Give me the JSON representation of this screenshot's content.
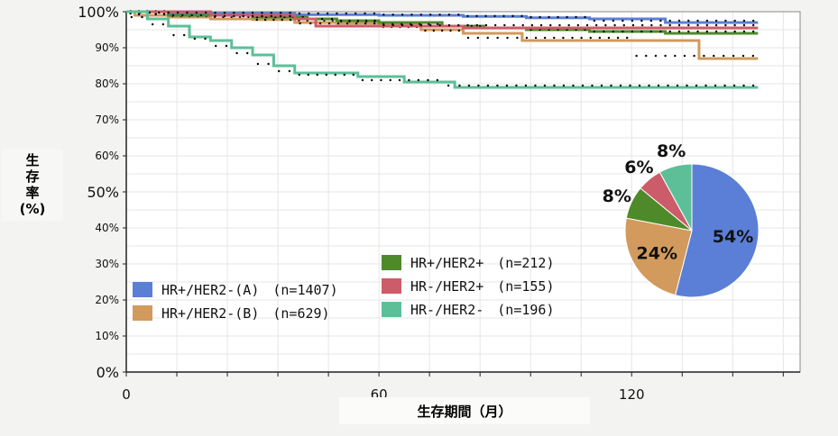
{
  "chart_data": [
    {
      "type": "line",
      "title": "",
      "ylabel_lines": [
        "生",
        "存",
        "率",
        "(%)"
      ],
      "xlabel": "生存期間（月）",
      "xlim": [
        0,
        160
      ],
      "ylim": [
        0,
        100
      ],
      "x_ticks": [
        "0",
        "60",
        "120"
      ],
      "x_tick_values": [
        0,
        60,
        120
      ],
      "y_ticks": [
        "0%",
        "10%",
        "20%",
        "30%",
        "40%",
        "50%",
        "60%",
        "70%",
        "80%",
        "90%",
        "100%"
      ],
      "y_tick_values": [
        0,
        10,
        20,
        30,
        40,
        50,
        60,
        70,
        80,
        90,
        100
      ],
      "grid": true,
      "legend_position": "bottom-left",
      "series": [
        {
          "name": "HR+/HER2-(A) (n=1407)",
          "color": "#5b7fd6",
          "x": [
            0,
            10,
            20,
            40,
            60,
            80,
            95,
            110,
            128,
            150
          ],
          "y": [
            100,
            99.7,
            99.5,
            99.2,
            99,
            98.7,
            98.3,
            98,
            97,
            97
          ]
        },
        {
          "name": "HR+/HER2-(B) (n=629)",
          "color": "#d29a5c",
          "x": [
            0,
            2,
            10,
            20,
            30,
            40,
            50,
            60,
            70,
            80,
            94,
            120,
            136,
            150
          ],
          "y": [
            100,
            99,
            98.5,
            98,
            97.8,
            97,
            96.8,
            96.5,
            95,
            94,
            92,
            92,
            87,
            87
          ]
        },
        {
          "name": "HR+/HER2+ (n=212)",
          "color": "#4e8a2a",
          "x": [
            0,
            10,
            30,
            43,
            50,
            60,
            75,
            85,
            95,
            110,
            128,
            150
          ],
          "y": [
            100,
            99,
            98.5,
            98,
            97.5,
            97,
            96,
            95.5,
            95,
            94.5,
            94,
            94
          ]
        },
        {
          "name": "HR-/HER2+ (n=155)",
          "color": "#cc5c6a",
          "x": [
            0,
            20,
            40,
            45,
            60,
            80,
            128,
            150
          ],
          "y": [
            100,
            99,
            98,
            96,
            96,
            95.5,
            95.5,
            95.5
          ]
        },
        {
          "name": "HR-/HER2- (n=196)",
          "color": "#5cbf98",
          "x": [
            0,
            5,
            10,
            15,
            20,
            25,
            30,
            35,
            40,
            55,
            66,
            75,
            78,
            150
          ],
          "y": [
            100,
            98,
            96,
            93,
            92,
            90,
            88,
            85,
            83,
            82,
            80.5,
            80.5,
            79,
            79
          ]
        }
      ]
    },
    {
      "type": "pie",
      "labels": [
        "54%",
        "24%",
        "8%",
        "6%",
        "8%"
      ],
      "values": [
        54,
        24,
        8,
        6,
        8
      ],
      "colors": [
        "#5b7fd6",
        "#d29a5c",
        "#4e8a2a",
        "#cc5c6a",
        "#5cbf98"
      ]
    }
  ],
  "legend_left": [
    {
      "label": "HR+/HER2-(A)　(n=1407)",
      "color": "#5b7fd6"
    },
    {
      "label": "HR+/HER2-(B)　(n=629)",
      "color": "#d29a5c"
    }
  ],
  "legend_right": [
    {
      "label": "HR+/HER2+　(n=212)",
      "color": "#4e8a2a"
    },
    {
      "label": "HR-/HER2+　(n=155)",
      "color": "#cc5c6a"
    },
    {
      "label": "HR-/HER2-　(n=196)",
      "color": "#5cbf98"
    }
  ],
  "axis_title_y": [
    "生",
    "存",
    "率",
    "(%)"
  ],
  "axis_title_x": "生存期間（月）"
}
